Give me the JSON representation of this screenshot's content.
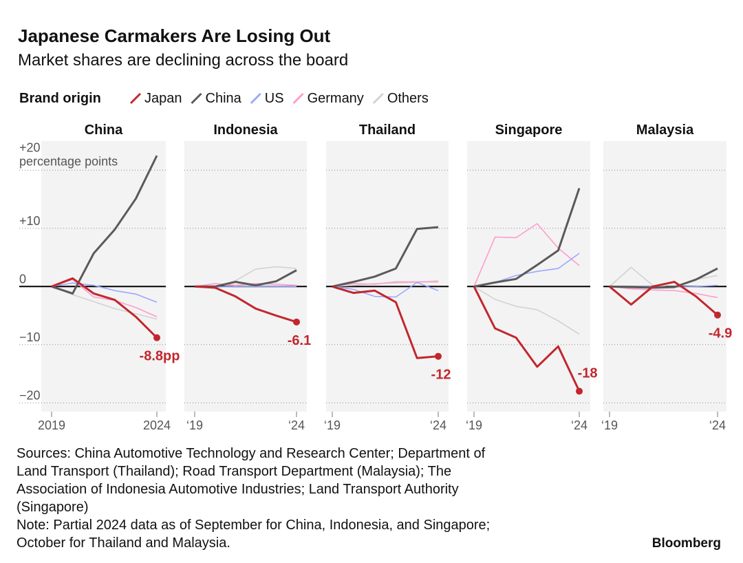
{
  "title": "Japanese Carmakers Are Losing Out",
  "subtitle": "Market shares are declining across the board",
  "legend_title": "Brand origin",
  "footnote_lines": [
    "Sources: China Automotive Technology and Research Center; Department of",
    "Land Transport (Thailand); Road Transport Department (Malaysia); The",
    "Association of Indonesia Automotive Industries; Land Transport Authority",
    "(Singapore)",
    "Note: Partial 2024 data as of September for China, Indonesia, and Singapore;",
    "October for Thailand and Malaysia."
  ],
  "brand": "Bloomberg",
  "chart_data": [
    {
      "type": "line",
      "title": "China",
      "y_annotation": "percentage points",
      "x": [
        2019,
        2020,
        2021,
        2022,
        2023,
        2024
      ],
      "xlim": [
        2019,
        2024
      ],
      "xticks": [
        {
          "value": 2019,
          "label": "2019"
        },
        {
          "value": 2024,
          "label": "2024"
        }
      ],
      "ylim": [
        -21.5,
        25
      ],
      "grid": true,
      "yticks": [
        {
          "value": -20,
          "label": "−20"
        },
        {
          "value": -10,
          "label": "−10"
        },
        0,
        {
          "value": 10,
          "label": "+10"
        },
        {
          "value": 20,
          "label": "+20"
        }
      ],
      "series": [
        {
          "name": "Others",
          "color": "#d2d2d2",
          "values": [
            0,
            -1.4,
            -2.6,
            -3.8,
            -4.7,
            -5.6
          ]
        },
        {
          "name": "Germany",
          "color": "#ff9ccb",
          "values": [
            0,
            1.2,
            -1.8,
            -2.4,
            -3.6,
            -5.2
          ]
        },
        {
          "name": "US",
          "color": "#9aa8ff",
          "values": [
            0,
            0.6,
            0.2,
            -0.7,
            -1.3,
            -2.7
          ]
        },
        {
          "name": "China",
          "color": "#5a5a5a",
          "values": [
            0,
            -1.2,
            5.7,
            9.8,
            15.1,
            22.5
          ]
        },
        {
          "name": "Japan",
          "color": "#c1272d",
          "values": [
            0,
            1.4,
            -1.2,
            -2.3,
            -5.2,
            -8.8
          ],
          "value_labels": [
            null,
            null,
            null,
            null,
            null,
            "-8.8pp"
          ]
        }
      ]
    },
    {
      "type": "line",
      "title": "Indonesia",
      "x": [
        2019,
        2020,
        2021,
        2022,
        2023,
        2024
      ],
      "xlim": [
        2019,
        2024
      ],
      "xticks": [
        {
          "value": 2019,
          "label": "‘19"
        },
        {
          "value": 2024,
          "label": "‘24"
        }
      ],
      "ylim": [
        -21.5,
        25
      ],
      "grid": true,
      "series": [
        {
          "name": "Others",
          "color": "#d2d2d2",
          "values": [
            0,
            0,
            1,
            3,
            3.4,
            3.1
          ]
        },
        {
          "name": "Germany",
          "color": "#ff9ccb",
          "values": [
            0,
            0.5,
            0.2,
            0.5,
            0.4,
            0.2
          ]
        },
        {
          "name": "US",
          "color": "#9aa8ff",
          "values": [
            0,
            -0.1,
            0,
            0,
            0,
            0
          ]
        },
        {
          "name": "China",
          "color": "#5a5a5a",
          "values": [
            0,
            0,
            0.8,
            0.2,
            0.9,
            2.8
          ]
        },
        {
          "name": "Japan",
          "color": "#c1272d",
          "values": [
            0,
            -0.2,
            -1.7,
            -3.8,
            -5,
            -6.1
          ],
          "value_labels": [
            null,
            null,
            null,
            null,
            null,
            "-6.1"
          ]
        }
      ]
    },
    {
      "type": "line",
      "title": "Thailand",
      "x": [
        2019,
        2020,
        2021,
        2022,
        2023,
        2024
      ],
      "xlim": [
        2019,
        2024
      ],
      "xticks": [
        {
          "value": 2019,
          "label": "‘19"
        },
        {
          "value": 2024,
          "label": "‘24"
        }
      ],
      "ylim": [
        -21.5,
        25
      ],
      "grid": true,
      "series": [
        {
          "name": "Others",
          "color": "#d2d2d2",
          "values": [
            0,
            0.2,
            0.5,
            0.6,
            0.7,
            1
          ]
        },
        {
          "name": "Germany",
          "color": "#ff9ccb",
          "values": [
            0,
            0.5,
            0.4,
            0.8,
            0.8,
            0.8
          ]
        },
        {
          "name": "US",
          "color": "#9aa8ff",
          "values": [
            0,
            -0.5,
            -1.7,
            -1.8,
            0.7,
            -0.7
          ]
        },
        {
          "name": "China",
          "color": "#5a5a5a",
          "values": [
            0,
            0.8,
            1.7,
            3.1,
            9.9,
            10.2
          ]
        },
        {
          "name": "Japan",
          "color": "#c1272d",
          "values": [
            0,
            -1.1,
            -0.7,
            -2.7,
            -12.3,
            -12
          ],
          "value_labels": [
            null,
            null,
            null,
            null,
            null,
            "-12"
          ]
        }
      ]
    },
    {
      "type": "line",
      "title": "Singapore",
      "x": [
        2019,
        2020,
        2021,
        2022,
        2023,
        2024
      ],
      "xlim": [
        2019,
        2024
      ],
      "xticks": [
        {
          "value": 2019,
          "label": "‘19"
        },
        {
          "value": 2024,
          "label": "‘24"
        }
      ],
      "ylim": [
        -21.5,
        25
      ],
      "grid": true,
      "series": [
        {
          "name": "Others",
          "color": "#d2d2d2",
          "values": [
            0,
            -2.2,
            -3.4,
            -4,
            -5.9,
            -8.2
          ]
        },
        {
          "name": "Germany",
          "color": "#ff9ccb",
          "values": [
            0,
            8.5,
            8.4,
            10.8,
            6.6,
            3.6
          ]
        },
        {
          "name": "US",
          "color": "#9aa8ff",
          "values": [
            0,
            0.7,
            1.9,
            2.6,
            3.1,
            5.7
          ]
        },
        {
          "name": "China",
          "color": "#5a5a5a",
          "values": [
            0,
            0.7,
            1.3,
            3.7,
            6.2,
            16.9
          ]
        },
        {
          "name": "Japan",
          "color": "#c1272d",
          "values": [
            0,
            -7.2,
            -8.8,
            -13.8,
            -10.3,
            -18
          ],
          "value_labels": [
            null,
            null,
            null,
            null,
            null,
            "-18"
          ]
        }
      ]
    },
    {
      "type": "line",
      "title": "Malaysia",
      "x": [
        2019,
        2020,
        2021,
        2022,
        2023,
        2024
      ],
      "xlim": [
        2019,
        2024
      ],
      "xticks": [
        {
          "value": 2019,
          "label": "‘19"
        },
        {
          "value": 2024,
          "label": "‘24"
        }
      ],
      "ylim": [
        -21.5,
        25
      ],
      "grid": true,
      "series": [
        {
          "name": "Others",
          "color": "#d2d2d2",
          "values": [
            0,
            3.3,
            0.2,
            -0.2,
            1.2,
            1.9
          ]
        },
        {
          "name": "Germany",
          "color": "#ff9ccb",
          "values": [
            0,
            -0.4,
            -0.6,
            -0.7,
            -1.2,
            -1.9
          ]
        },
        {
          "name": "US",
          "color": "#9aa8ff",
          "values": [
            0,
            0,
            0,
            -0.1,
            0,
            0.2
          ]
        },
        {
          "name": "China",
          "color": "#5a5a5a",
          "values": [
            0,
            -0.1,
            -0.2,
            -0.1,
            1.2,
            3.1
          ]
        },
        {
          "name": "Japan",
          "color": "#c1272d",
          "values": [
            0,
            -3.1,
            0,
            0.8,
            -1.7,
            -4.9
          ],
          "value_labels": [
            null,
            null,
            null,
            null,
            null,
            "-4.9"
          ]
        }
      ]
    }
  ]
}
